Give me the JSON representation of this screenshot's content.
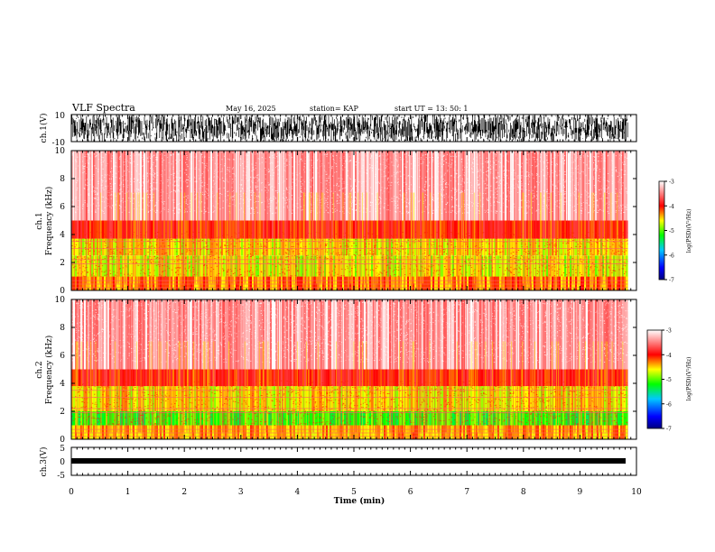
{
  "header": {
    "title": "VLF Spectra",
    "date": "May 16, 2025",
    "station": "station= KAP",
    "start": "start  UT  =   13: 50: 1"
  },
  "chart_data": [
    {
      "type": "line",
      "name": "ch1-waveform",
      "ylabel": "ch.1(V)",
      "ylim": [
        -10,
        10
      ],
      "y_tick_labels": [
        "10",
        "-10"
      ],
      "xlim": [
        0,
        10
      ],
      "data_end_min": 9.85,
      "description_values": "noise-like waveform spanning approx -10 to 10 V"
    },
    {
      "type": "heatmap",
      "name": "ch1-spectrogram",
      "ylabel": "ch.1\nFrequency (kHz)",
      "ylim": [
        0,
        10
      ],
      "y_tick_labels": [
        "0",
        "2",
        "4",
        "6",
        "8",
        "10"
      ],
      "xlim": [
        0,
        10
      ],
      "data_end_min": 9.85,
      "colorbar": {
        "label": "log(PSD)(V²/Hz)",
        "range": [
          -7,
          -3
        ],
        "tick_labels": [
          "-3",
          "-4",
          "-5",
          "-6",
          "-7"
        ]
      },
      "bands": [
        {
          "from_khz": 0.0,
          "to_khz": 1.0,
          "level": -4.3
        },
        {
          "from_khz": 1.0,
          "to_khz": 2.5,
          "level": -4.7
        },
        {
          "from_khz": 2.5,
          "to_khz": 3.7,
          "level": -4.6
        },
        {
          "from_khz": 3.7,
          "to_khz": 5.0,
          "level": -4.0
        },
        {
          "from_khz": 5.0,
          "to_khz": 10.0,
          "level": -3.3
        }
      ]
    },
    {
      "type": "heatmap",
      "name": "ch2-spectrogram",
      "ylabel": "ch.2\nFrequency (kHz)",
      "ylim": [
        0,
        10
      ],
      "y_tick_labels": [
        "0",
        "2",
        "4",
        "6",
        "8",
        "10"
      ],
      "xlim": [
        0,
        10
      ],
      "data_end_min": 9.85,
      "colorbar": {
        "label": "log(PSD)(V²/Hz)",
        "range": [
          -7,
          -3
        ],
        "tick_labels": [
          "-3",
          "-4",
          "-5",
          "-6",
          "-7"
        ]
      },
      "bands": [
        {
          "from_khz": 0.0,
          "to_khz": 1.0,
          "level": -4.4
        },
        {
          "from_khz": 1.0,
          "to_khz": 2.0,
          "level": -5.1
        },
        {
          "from_khz": 2.0,
          "to_khz": 3.8,
          "level": -4.6
        },
        {
          "from_khz": 3.8,
          "to_khz": 5.0,
          "level": -4.0
        },
        {
          "from_khz": 5.0,
          "to_khz": 10.0,
          "level": -3.3
        }
      ]
    },
    {
      "type": "line",
      "name": "ch3-waveform",
      "ylabel": "ch.3(V)",
      "ylim": [
        -5,
        5
      ],
      "y_tick_labels": [
        "5",
        "0",
        "-5"
      ],
      "xlim": [
        0,
        10
      ],
      "data_end_min": 9.85,
      "description_values": "flat thick band near -0.5 V"
    }
  ],
  "x_axis": {
    "label": "Time (min)",
    "ticks": [
      0,
      1,
      2,
      3,
      4,
      5,
      6,
      7,
      8,
      9,
      10
    ],
    "tick_labels": [
      "0",
      "1",
      "2",
      "3",
      "4",
      "5",
      "6",
      "7",
      "8",
      "9",
      "10"
    ]
  }
}
